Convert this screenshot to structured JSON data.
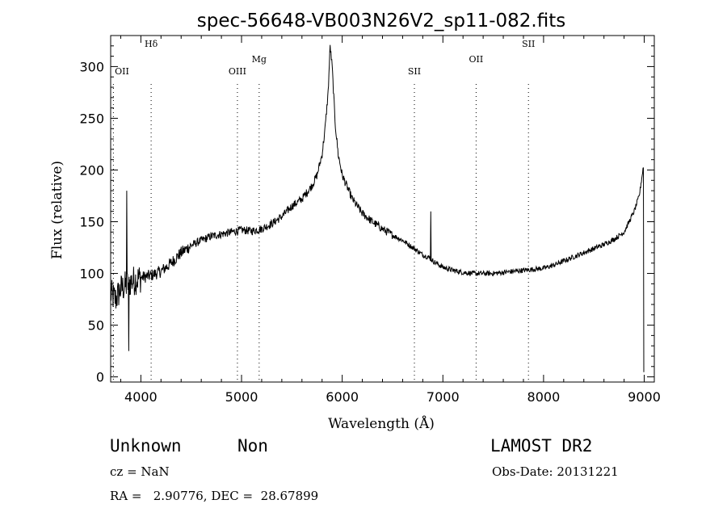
{
  "chart_data": {
    "type": "line",
    "title": "spec-56648-VB003N26V2_sp11-082.fits",
    "xlabel": "Wavelength (Å)",
    "ylabel": "Flux (relative)",
    "xlim": [
      3700,
      9100
    ],
    "ylim": [
      -5,
      330
    ],
    "xticks": [
      4000,
      5000,
      6000,
      7000,
      8000,
      9000
    ],
    "yticks": [
      0,
      50,
      100,
      150,
      200,
      250,
      300
    ],
    "grid": false,
    "line_color": "#000000",
    "lines": [
      {
        "label": "OII",
        "x": 3727
      },
      {
        "label": "Hδ",
        "x": 4102
      },
      {
        "label": "OIII",
        "x": 4959
      },
      {
        "label": "Mg",
        "x": 5175
      },
      {
        "label": "SII",
        "x": 6717
      },
      {
        "label": "OII",
        "x": 7330
      },
      {
        "label": "SII",
        "x": 7850
      }
    ],
    "series": [
      {
        "x": [
          3700,
          3750,
          3800,
          3850,
          3900,
          3950,
          4000,
          4100,
          4200,
          4300,
          4400,
          4500,
          4600,
          4700,
          4800,
          4900,
          5000,
          5100,
          5200,
          5300,
          5400,
          5500,
          5600,
          5700,
          5750,
          5800,
          5830,
          5860,
          5880,
          5900,
          5930,
          5960,
          6000,
          6100,
          6200,
          6300,
          6400,
          6500,
          6600,
          6700,
          6800,
          6870,
          6900,
          7000,
          7100,
          7200,
          7300,
          7400,
          7500,
          7600,
          7700,
          7800,
          7900,
          8000,
          8100,
          8200,
          8300,
          8400,
          8500,
          8600,
          8700,
          8800,
          8850,
          8900,
          8950,
          8980,
          9000
        ],
        "y": [
          80,
          75,
          85,
          88,
          92,
          94,
          96,
          98,
          102,
          110,
          120,
          127,
          132,
          136,
          138,
          140,
          142,
          141,
          143,
          148,
          155,
          165,
          172,
          185,
          195,
          215,
          240,
          275,
          320,
          300,
          245,
          215,
          195,
          172,
          158,
          150,
          143,
          137,
          132,
          125,
          118,
          115,
          112,
          106,
          103,
          101,
          100,
          100,
          100,
          101,
          102,
          103,
          104,
          105,
          108,
          112,
          116,
          120,
          124,
          128,
          133,
          140,
          150,
          160,
          175,
          195,
          210
        ]
      }
    ]
  },
  "info": {
    "class_label": "Unknown",
    "subclass_label": "Non",
    "survey": "LAMOST DR2",
    "cz": "cz = NaN",
    "obs_date": "Obs-Date: 20131221",
    "coords": "RA =   2.90776, DEC =  28.67899"
  }
}
